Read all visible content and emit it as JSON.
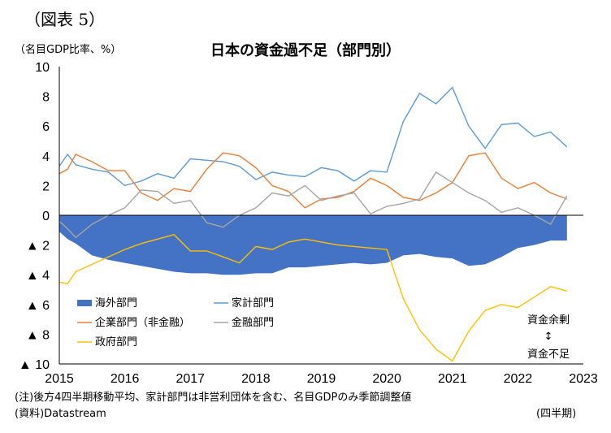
{
  "figure_label": "（図表 5）",
  "unit_label": "（名目GDP比率、%）",
  "title": "日本の資金過不足（部門別）",
  "note": "(注)後方4四半期移動平均、家計部門は非営利団体を含む、名目GDPのみ季節調整値",
  "source": "(資料)Datastream",
  "x_unit": "(四半期)",
  "annotation": {
    "surplus": "資金余剰",
    "arrow": "↕",
    "deficit": "資金不足"
  },
  "colors": {
    "overseas": "#4472C4",
    "household": "#5B9BD5",
    "corporate": "#ED7D31",
    "financial": "#A5A5A5",
    "government": "#FFC000"
  },
  "chart_data": {
    "type": "line",
    "title": "日本の資金過不足（部門別）",
    "ylabel": "（名目GDP比率、%）",
    "xlabel": "(四半期)",
    "ylim": [
      -10,
      10
    ],
    "xlim": [
      2015,
      2023
    ],
    "grid": false,
    "legend_position": "lower-left",
    "yticks": [
      {
        "value": 10,
        "label": "10"
      },
      {
        "value": 8,
        "label": "8"
      },
      {
        "value": 6,
        "label": "6"
      },
      {
        "value": 4,
        "label": "4"
      },
      {
        "value": 2,
        "label": "2"
      },
      {
        "value": 0,
        "label": "0"
      },
      {
        "value": -2,
        "label": "▲ 2"
      },
      {
        "value": -4,
        "label": "▲ 4"
      },
      {
        "value": -6,
        "label": "▲ 6"
      },
      {
        "value": -8,
        "label": "▲ 8"
      },
      {
        "value": -10,
        "label": "▲ 10"
      }
    ],
    "xticks": [
      {
        "value": 2015,
        "label": "2015"
      },
      {
        "value": 2016,
        "label": "2016"
      },
      {
        "value": 2017,
        "label": "2017"
      },
      {
        "value": 2018,
        "label": "2018"
      },
      {
        "value": 2019,
        "label": "2019"
      },
      {
        "value": 2020,
        "label": "2020"
      },
      {
        "value": 2021,
        "label": "2021"
      },
      {
        "value": 2022,
        "label": "2022"
      },
      {
        "value": 2023,
        "label": "2023"
      }
    ],
    "x": [
      2015.0,
      2015.125,
      2015.25,
      2015.5,
      2015.75,
      2016.0,
      2016.25,
      2016.5,
      2016.75,
      2017.0,
      2017.25,
      2017.5,
      2017.75,
      2018.0,
      2018.25,
      2018.5,
      2018.75,
      2019.0,
      2019.25,
      2019.5,
      2019.75,
      2020.0,
      2020.25,
      2020.5,
      2020.75,
      2021.0,
      2021.25,
      2021.5,
      2021.75,
      2022.0,
      2022.25,
      2022.5,
      2022.75
    ],
    "series": [
      {
        "name": "海外部門",
        "kind": "area",
        "values": [
          -1.1,
          -1.6,
          -1.9,
          -2.7,
          -3.0,
          -3.2,
          -3.4,
          -3.6,
          -3.8,
          -3.9,
          -3.9,
          -4.0,
          -4.0,
          -3.9,
          -3.9,
          -3.5,
          -3.5,
          -3.4,
          -3.3,
          -3.2,
          -3.3,
          -3.2,
          -2.7,
          -2.6,
          -2.8,
          -2.9,
          -3.4,
          -3.3,
          -2.8,
          -2.2,
          -2.0,
          -1.7,
          -1.7
        ]
      },
      {
        "name": "家計部門",
        "kind": "line",
        "values": [
          3.3,
          4.1,
          3.4,
          3.1,
          2.9,
          2.0,
          2.3,
          2.8,
          2.5,
          3.8,
          3.7,
          3.6,
          3.3,
          2.4,
          2.9,
          2.7,
          2.6,
          3.2,
          3.0,
          2.3,
          3.0,
          2.9,
          6.3,
          8.2,
          7.5,
          8.6,
          6.0,
          4.5,
          6.1,
          6.2,
          5.3,
          5.6,
          4.6
        ]
      },
      {
        "name": "企業部門（非金融）",
        "kind": "line",
        "values": [
          2.8,
          3.1,
          4.1,
          3.6,
          3.0,
          3.0,
          1.5,
          1.0,
          1.8,
          1.6,
          3.1,
          4.2,
          4.0,
          3.2,
          2.0,
          1.6,
          0.5,
          1.1,
          1.2,
          1.6,
          2.5,
          2.0,
          1.2,
          1.0,
          1.5,
          2.2,
          4.0,
          4.2,
          2.5,
          1.8,
          2.2,
          1.5,
          1.1
        ]
      },
      {
        "name": "金融部門",
        "kind": "line",
        "values": [
          -0.4,
          -0.9,
          -1.5,
          -0.6,
          0.0,
          0.5,
          1.7,
          1.6,
          0.8,
          1.0,
          -0.5,
          -0.8,
          0.0,
          0.5,
          1.5,
          1.3,
          2.0,
          1.0,
          1.3,
          1.5,
          0.1,
          0.6,
          0.8,
          1.1,
          2.9,
          2.2,
          1.5,
          1.0,
          0.2,
          0.5,
          0.0,
          -0.6,
          1.3
        ]
      },
      {
        "name": "政府部門",
        "kind": "line",
        "values": [
          -4.5,
          -4.6,
          -3.8,
          -3.3,
          -2.8,
          -2.3,
          -1.9,
          -1.6,
          -1.3,
          -2.4,
          -2.4,
          -2.8,
          -3.2,
          -2.1,
          -2.3,
          -1.8,
          -1.6,
          -1.8,
          -2.0,
          -2.1,
          -2.2,
          -2.3,
          -5.6,
          -7.7,
          -9.0,
          -9.8,
          -7.8,
          -6.4,
          -6.0,
          -6.2,
          -5.5,
          -4.8,
          -5.1
        ]
      }
    ]
  }
}
